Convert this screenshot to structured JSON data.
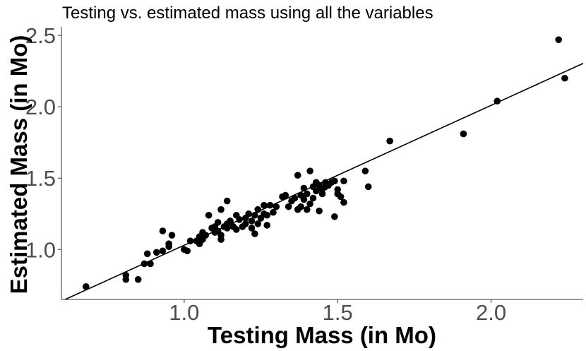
{
  "chart_data": {
    "type": "scatter",
    "title": "Testing vs. estimated mass using all the variables",
    "xlabel": "Testing Mass (in Mo)",
    "ylabel": "Estimated Mass (in Mo)",
    "xlim": [
      0.6,
      2.3
    ],
    "ylim": [
      0.65,
      2.56
    ],
    "xticks": [
      1.0,
      1.5,
      2.0
    ],
    "xtick_labels": [
      "1.0",
      "1.5",
      "2.0"
    ],
    "yticks": [
      1.0,
      1.5,
      2.0,
      2.5
    ],
    "ytick_labels": [
      "1.0",
      "1.5",
      "2.0",
      "2.5"
    ],
    "grid": false,
    "fit_line": {
      "slope": 0.98,
      "intercept": 0.05
    },
    "colors": {
      "points": "#000000",
      "line": "#000000",
      "axis": "#333333",
      "ticks": "#4d4d4d"
    },
    "points": [
      [
        0.68,
        0.74
      ],
      [
        0.81,
        0.82
      ],
      [
        0.81,
        0.79
      ],
      [
        0.85,
        0.79
      ],
      [
        0.87,
        0.9
      ],
      [
        0.88,
        0.97
      ],
      [
        0.89,
        0.9
      ],
      [
        0.91,
        0.98
      ],
      [
        0.93,
        1.13
      ],
      [
        0.93,
        0.99
      ],
      [
        0.95,
        1.02
      ],
      [
        0.95,
        1.04
      ],
      [
        0.96,
        1.1
      ],
      [
        1.0,
        1.0
      ],
      [
        1.01,
        0.99
      ],
      [
        1.02,
        1.06
      ],
      [
        1.04,
        1.06
      ],
      [
        1.05,
        1.09
      ],
      [
        1.05,
        1.04
      ],
      [
        1.06,
        1.12
      ],
      [
        1.06,
        1.07
      ],
      [
        1.07,
        1.1
      ],
      [
        1.08,
        1.24
      ],
      [
        1.09,
        1.15
      ],
      [
        1.1,
        1.12
      ],
      [
        1.1,
        1.16
      ],
      [
        1.11,
        1.19
      ],
      [
        1.11,
        1.13
      ],
      [
        1.12,
        1.1
      ],
      [
        1.12,
        1.07
      ],
      [
        1.12,
        1.28
      ],
      [
        1.13,
        1.16
      ],
      [
        1.14,
        1.18
      ],
      [
        1.14,
        1.15
      ],
      [
        1.14,
        1.34
      ],
      [
        1.15,
        1.2
      ],
      [
        1.16,
        1.16
      ],
      [
        1.17,
        1.24
      ],
      [
        1.17,
        1.14
      ],
      [
        1.18,
        1.21
      ],
      [
        1.19,
        1.16
      ],
      [
        1.2,
        1.18
      ],
      [
        1.2,
        1.22
      ],
      [
        1.21,
        1.25
      ],
      [
        1.22,
        1.15
      ],
      [
        1.22,
        1.2
      ],
      [
        1.23,
        1.24
      ],
      [
        1.23,
        1.11
      ],
      [
        1.24,
        1.28
      ],
      [
        1.24,
        1.18
      ],
      [
        1.25,
        1.22
      ],
      [
        1.26,
        1.31
      ],
      [
        1.26,
        1.25
      ],
      [
        1.27,
        1.17
      ],
      [
        1.27,
        1.24
      ],
      [
        1.28,
        1.31
      ],
      [
        1.29,
        1.26
      ],
      [
        1.3,
        1.3
      ],
      [
        1.32,
        1.37
      ],
      [
        1.33,
        1.38
      ],
      [
        1.34,
        1.3
      ],
      [
        1.35,
        1.34
      ],
      [
        1.36,
        1.36
      ],
      [
        1.37,
        1.28
      ],
      [
        1.37,
        1.52
      ],
      [
        1.38,
        1.38
      ],
      [
        1.38,
        1.3
      ],
      [
        1.39,
        1.43
      ],
      [
        1.39,
        1.35
      ],
      [
        1.4,
        1.39
      ],
      [
        1.4,
        1.28
      ],
      [
        1.41,
        1.55
      ],
      [
        1.41,
        1.32
      ],
      [
        1.42,
        1.36
      ],
      [
        1.42,
        1.44
      ],
      [
        1.43,
        1.47
      ],
      [
        1.43,
        1.41
      ],
      [
        1.44,
        1.45
      ],
      [
        1.44,
        1.27
      ],
      [
        1.45,
        1.42
      ],
      [
        1.45,
        1.39
      ],
      [
        1.46,
        1.47
      ],
      [
        1.46,
        1.44
      ],
      [
        1.47,
        1.45
      ],
      [
        1.48,
        1.47
      ],
      [
        1.49,
        1.23
      ],
      [
        1.49,
        1.48
      ],
      [
        1.5,
        1.42
      ],
      [
        1.5,
        1.39
      ],
      [
        1.51,
        1.37
      ],
      [
        1.52,
        1.33
      ],
      [
        1.52,
        1.48
      ],
      [
        1.59,
        1.55
      ],
      [
        1.6,
        1.44
      ],
      [
        1.67,
        1.76
      ],
      [
        1.91,
        1.81
      ],
      [
        2.02,
        2.04
      ],
      [
        2.22,
        2.47
      ],
      [
        2.24,
        2.2
      ]
    ]
  }
}
